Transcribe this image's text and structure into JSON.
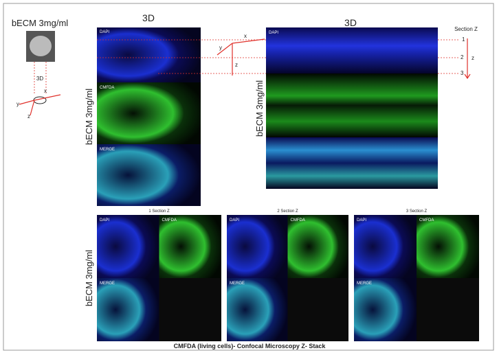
{
  "schematic": {
    "title": "bECM 3mg/ml",
    "label_3d": "3D",
    "axes": {
      "x": "x",
      "y": "y",
      "z": "z"
    }
  },
  "panel_a": {
    "header": "3D",
    "side_label": "bECM 3mg/ml",
    "channels": [
      "DAPI",
      "CMFDA",
      "MERGE"
    ]
  },
  "axes_diagram": {
    "x": "x",
    "y": "y",
    "z": "z"
  },
  "panel_b": {
    "header": "3D",
    "side_label": "bECM 3mg/ml",
    "channels": [
      "DAPI"
    ],
    "section_z": {
      "title": "Section Z",
      "levels": [
        "1",
        "2",
        "3"
      ],
      "axis": "z"
    }
  },
  "sections": {
    "side_label": "bECM 3mg/ml",
    "panels": [
      {
        "title": "1 Section Z",
        "channels": [
          "DAPI",
          "CMFDA",
          "MERGE"
        ]
      },
      {
        "title": "2 Section Z",
        "channels": [
          "DAPI",
          "CMFDA",
          "MERGE"
        ]
      },
      {
        "title": "3 Section Z",
        "channels": [
          "DAPI",
          "CMFDA",
          "MERGE"
        ]
      }
    ]
  },
  "caption": "CMFDA (living cells)- Confocal Microscopy  Z- Stack"
}
